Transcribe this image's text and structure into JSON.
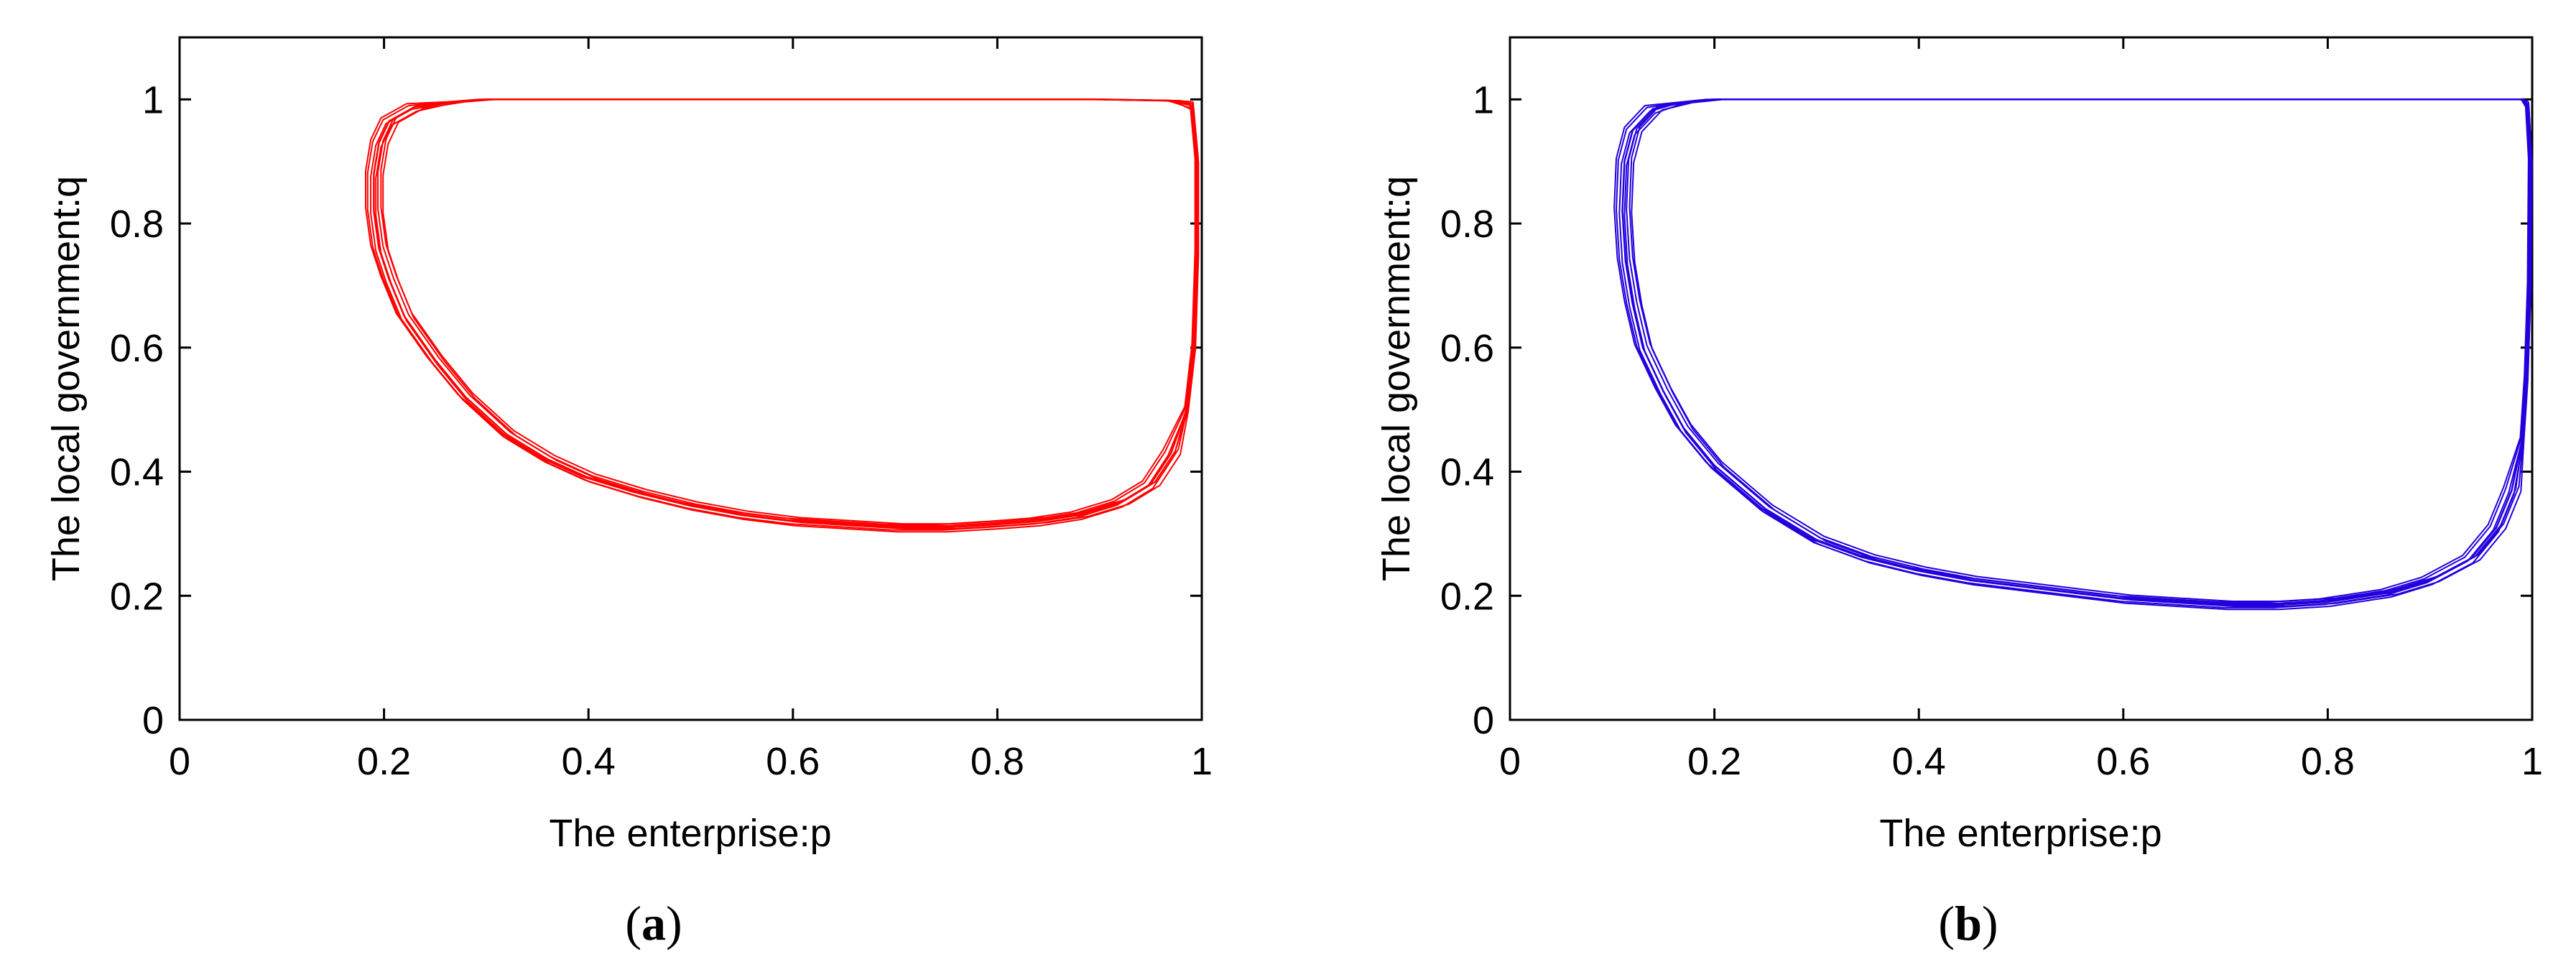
{
  "chart_data": [
    {
      "type": "line",
      "panel_label": "a",
      "xlabel": "The enterprise:p",
      "ylabel": "The local government:q",
      "xlim": [
        0,
        1
      ],
      "ylim": [
        0,
        1.1
      ],
      "xticks": [
        0,
        0.2,
        0.4,
        0.6,
        0.8,
        1
      ],
      "yticks": [
        0,
        0.2,
        0.4,
        0.6,
        0.8,
        1
      ],
      "xtick_labels": [
        "0",
        "0.2",
        "0.4",
        "0.6",
        "0.8",
        "1"
      ],
      "ytick_labels": [
        "0",
        "0.2",
        "0.4",
        "0.6",
        "0.8",
        "1"
      ],
      "grid": false,
      "legend": "none",
      "color": "#ff0000",
      "series": [
        {
          "x": [
            0.99,
            0.995,
            0.995,
            0.992,
            0.985,
            0.97,
            0.95,
            0.92,
            0.88,
            0.84,
            0.8,
            0.75,
            0.7,
            0.65,
            0.6,
            0.55,
            0.5,
            0.45,
            0.4,
            0.36,
            0.32,
            0.28,
            0.25,
            0.22,
            0.205,
            0.195,
            0.19,
            0.19,
            0.195,
            0.205,
            0.23,
            0.27,
            0.3,
            0.4,
            0.5,
            0.7,
            0.9,
            0.97,
            0.99
          ],
          "y": [
            0.99,
            0.9,
            0.75,
            0.6,
            0.5,
            0.43,
            0.38,
            0.35,
            0.33,
            0.32,
            0.315,
            0.31,
            0.31,
            0.315,
            0.32,
            0.33,
            0.345,
            0.365,
            0.39,
            0.42,
            0.46,
            0.52,
            0.58,
            0.65,
            0.71,
            0.76,
            0.82,
            0.88,
            0.93,
            0.965,
            0.988,
            0.996,
            1.0,
            1.0,
            1.0,
            1.0,
            1.0,
            0.998,
            0.99
          ]
        }
      ]
    },
    {
      "type": "line",
      "panel_label": "b",
      "xlabel": "The enterprise:p",
      "ylabel": "The local government:q",
      "xlim": [
        0,
        1
      ],
      "ylim": [
        0,
        1.1
      ],
      "xticks": [
        0,
        0.2,
        0.4,
        0.6,
        0.8,
        1
      ],
      "yticks": [
        0,
        0.2,
        0.4,
        0.6,
        0.8,
        1
      ],
      "xtick_labels": [
        "0",
        "0.2",
        "0.4",
        "0.6",
        "0.8",
        "1"
      ],
      "ytick_labels": [
        "0",
        "0.2",
        "0.4",
        "0.6",
        "0.8",
        "1"
      ],
      "grid": false,
      "legend": "none",
      "color": "#2200dd",
      "series": [
        {
          "x": [
            0.995,
            0.998,
            0.997,
            0.994,
            0.99,
            0.98,
            0.965,
            0.94,
            0.9,
            0.86,
            0.8,
            0.75,
            0.7,
            0.65,
            0.6,
            0.55,
            0.5,
            0.45,
            0.4,
            0.35,
            0.3,
            0.25,
            0.2,
            0.17,
            0.15,
            0.13,
            0.12,
            0.113,
            0.11,
            0.112,
            0.12,
            0.14,
            0.17,
            0.2,
            0.3,
            0.5,
            0.8,
            0.99,
            0.995
          ],
          "y": [
            0.99,
            0.9,
            0.7,
            0.55,
            0.45,
            0.37,
            0.31,
            0.26,
            0.225,
            0.205,
            0.19,
            0.185,
            0.185,
            0.19,
            0.195,
            0.205,
            0.215,
            0.225,
            0.24,
            0.26,
            0.29,
            0.34,
            0.41,
            0.47,
            0.53,
            0.6,
            0.67,
            0.74,
            0.82,
            0.9,
            0.95,
            0.985,
            0.995,
            1.0,
            1.0,
            1.0,
            1.0,
            1.0,
            0.99
          ]
        }
      ]
    }
  ]
}
